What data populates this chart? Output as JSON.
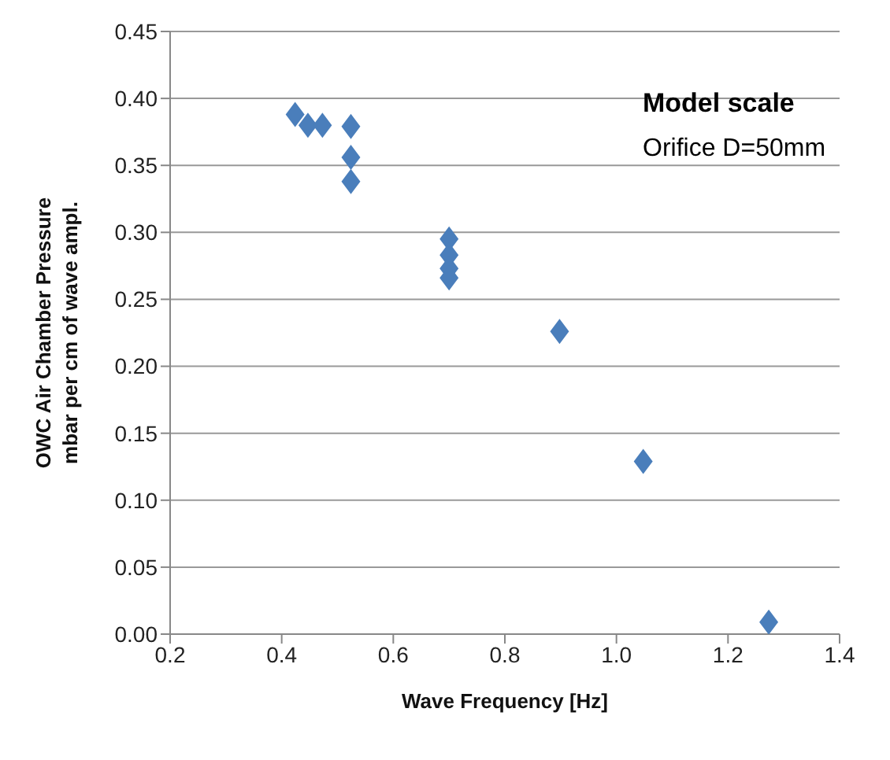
{
  "chart_data": {
    "type": "scatter",
    "xlabel": "Wave Frequency [Hz]",
    "ylabel": "OWC Air Chamber Pressure\nmbar per cm of wave ampl.",
    "x": [
      0.424,
      0.447,
      0.473,
      0.524,
      0.524,
      0.524,
      0.7,
      0.7,
      0.7,
      0.7,
      0.898,
      1.048,
      1.273
    ],
    "values": [
      0.388,
      0.38,
      0.38,
      0.379,
      0.356,
      0.338,
      0.295,
      0.283,
      0.273,
      0.266,
      0.226,
      0.129,
      0.009
    ],
    "color": "#4a7ebb",
    "marker": "diamond",
    "xlim": [
      0.2,
      1.4
    ],
    "xticks": [
      {
        "value": 0.2,
        "label": "0.2"
      },
      {
        "value": 0.4,
        "label": "0.4"
      },
      {
        "value": 0.6,
        "label": "0.6"
      },
      {
        "value": 0.8,
        "label": "0.8"
      },
      {
        "value": 1.0,
        "label": "1.0"
      },
      {
        "value": 1.2,
        "label": "1.2"
      },
      {
        "value": 1.4,
        "label": "1.4"
      }
    ],
    "ylim": [
      0,
      0.45
    ],
    "yticks": [
      {
        "value": 0,
        "label": "0.00"
      },
      {
        "value": 0.05,
        "label": "0.05"
      },
      {
        "value": 0.1,
        "label": "0.10"
      },
      {
        "value": 0.15,
        "label": "0.15"
      },
      {
        "value": 0.2,
        "label": "0.20"
      },
      {
        "value": 0.25,
        "label": "0.25"
      },
      {
        "value": 0.3,
        "label": "0.30"
      },
      {
        "value": 0.35,
        "label": "0.35"
      },
      {
        "value": 0.4,
        "label": "0.40"
      },
      {
        "value": 0.45,
        "label": "0.45"
      }
    ],
    "grid": "y",
    "annotations": [
      "Model scale",
      "Orifice D=50mm"
    ]
  }
}
